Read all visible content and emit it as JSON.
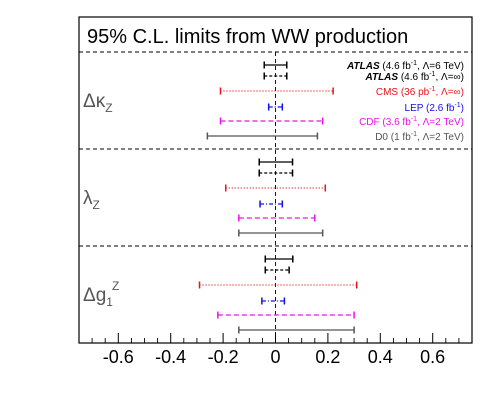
{
  "chart_data": {
    "type": "interval",
    "title": "95% C.L. limits from WW production",
    "xlim": [
      -0.75,
      0.75
    ],
    "x_ticks": [
      -0.6,
      -0.4,
      -0.2,
      0,
      0.2,
      0.4,
      0.6
    ],
    "tick_labels": [
      "-0.6",
      "-0.4",
      "-0.2",
      "0",
      "0.2",
      "0.4",
      "0.6"
    ],
    "panels": [
      {
        "label": "Δκ",
        "sub": "Z",
        "sup": ""
      },
      {
        "label": "λ",
        "sub": "Z",
        "sup": ""
      },
      {
        "label": "Δg",
        "sub": "1",
        "sup": "Z"
      }
    ],
    "series": [
      {
        "exp": "ATLAS",
        "exp_bold_italic": true,
        "rest": " (4.6 fb",
        "sup": "-1",
        "tail": ", Λ=6 TeV)",
        "color": "#000000",
        "dash": "solid",
        "intervals": [
          [
            -0.043,
            0.043
          ],
          [
            -0.062,
            0.065
          ],
          [
            -0.039,
            0.066
          ]
        ]
      },
      {
        "exp": "ATLAS",
        "exp_bold_italic": true,
        "rest": " (4.6 fb",
        "sup": "-1",
        "tail": ", Λ=∞)",
        "color": "#000000",
        "dash": "dash",
        "intervals": [
          [
            -0.043,
            0.043
          ],
          [
            -0.062,
            0.065
          ],
          [
            -0.039,
            0.052
          ]
        ]
      },
      {
        "exp": "CMS",
        "exp_bold_italic": false,
        "rest": " (36 pb",
        "sup": "-1",
        "tail": ", Λ=∞)",
        "color": "#e8141c",
        "dash": "dot",
        "intervals": [
          [
            -0.21,
            0.22
          ],
          [
            -0.19,
            0.19
          ],
          [
            -0.29,
            0.31
          ]
        ]
      },
      {
        "exp": "LEP",
        "exp_bold_italic": false,
        "rest": " (2.6 fb",
        "sup": "-1",
        "tail": ")",
        "color": "#1010ee",
        "dash": "dashdot",
        "intervals": [
          [
            -0.026,
            0.026
          ],
          [
            -0.059,
            0.026
          ],
          [
            -0.052,
            0.034
          ]
        ]
      },
      {
        "exp": "CDF",
        "exp_bold_italic": false,
        "rest": " (3.6 fb",
        "sup": "-1",
        "tail": ", Λ=2 TeV)",
        "color": "#e814e8",
        "dash": "longdash",
        "intervals": [
          [
            -0.21,
            0.18
          ],
          [
            -0.14,
            0.15
          ],
          [
            -0.22,
            0.3
          ]
        ]
      },
      {
        "exp": "D0",
        "exp_bold_italic": false,
        "rest": " (1 fb",
        "sup": "-1",
        "tail": ", Λ=2 TeV)",
        "color": "#555555",
        "dash": "solid",
        "intervals": [
          [
            -0.26,
            0.16
          ],
          [
            -0.14,
            0.18
          ],
          [
            -0.14,
            0.3
          ]
        ]
      }
    ]
  }
}
